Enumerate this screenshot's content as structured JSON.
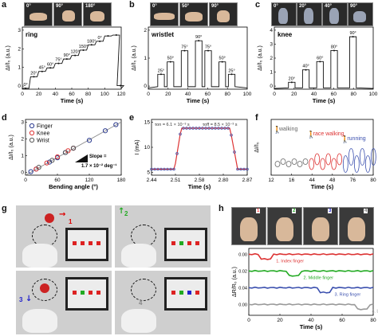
{
  "panels": {
    "a": {
      "label": "a",
      "photos": [
        "0°",
        "90°",
        "180°"
      ],
      "tag": "ring",
      "ylabel": "ΔI/I₀ (a.u.)",
      "xlabel": "Time (s)",
      "xticks": [
        "0",
        "20",
        "40",
        "60",
        "80",
        "100",
        "120"
      ],
      "yticks": [
        "0",
        "1",
        "2",
        "3"
      ],
      "steps": [
        "0°",
        "20°",
        "45°",
        "60°",
        "75°",
        "90°",
        "120°",
        "150°",
        "180°",
        "0°"
      ]
    },
    "b": {
      "label": "b",
      "photos": [
        "0°",
        "50°",
        "90°"
      ],
      "tag": "wristlet",
      "ylabel": "ΔI/I₀ (a.u.)",
      "xlabel": "Time (s)",
      "xticks": [
        "0",
        "20",
        "40",
        "60",
        "80",
        "100"
      ],
      "yticks": [
        "0",
        "1",
        "2"
      ],
      "steps": [
        "25°",
        "50°",
        "75°",
        "90°",
        "75°",
        "50°",
        "25°"
      ]
    },
    "c": {
      "label": "c",
      "photos": [
        "0°",
        "20°",
        "40°",
        "90°"
      ],
      "tag": "knee",
      "ylabel": "ΔI/I₀ (a.u.)",
      "xlabel": "Time (s)",
      "xticks": [
        "0",
        "20",
        "40",
        "60",
        "80",
        "100"
      ],
      "yticks": [
        "0",
        "1",
        "2",
        "3",
        "4"
      ],
      "steps": [
        "20°",
        "40°",
        "60°",
        "80°",
        "90°"
      ]
    },
    "d": {
      "label": "d",
      "ylabel": "ΔI/I₀ (a.u.)",
      "xlabel": "Bending angle (°)",
      "xticks": [
        "0",
        "60",
        "120",
        "180"
      ],
      "yticks": [
        "0",
        "1",
        "2",
        "3"
      ],
      "legend": [
        "Finger",
        "Knee",
        "Wrist"
      ],
      "slope_line1": "Slope =",
      "slope_line2": "1.7 × 10⁻² deg⁻¹"
    },
    "e": {
      "label": "e",
      "ylabel": "I (mA)",
      "xlabel": "Time (s)",
      "xticks": [
        "2.44",
        "2.51",
        "2.58",
        "2.80",
        "2.87"
      ],
      "yticks": [
        "5",
        "10",
        "15"
      ],
      "tau_on": "τon = 6.1 × 10⁻³ s",
      "tau_off": "τoff = 8.5 × 10⁻³ s"
    },
    "f": {
      "label": "f",
      "ylabel": "ΔI/I₀",
      "xlabel": "Time (s)",
      "xticks": [
        "12",
        "16",
        "44",
        "48",
        "76",
        "80"
      ],
      "modes": [
        "walking",
        "race walking",
        "running"
      ]
    },
    "g": {
      "label": "g",
      "n1": "1",
      "n2": "2",
      "n3": "3",
      "n4": "4"
    },
    "h": {
      "label": "h",
      "photos": [
        "1",
        "2",
        "3",
        "4"
      ],
      "ylabel": "ΔR/R₀ (a.u.)",
      "xlabel": "Time (s)",
      "xticks": [
        "0",
        "20",
        "40",
        "60",
        "80"
      ],
      "yticks": [
        "0.00",
        "0.02",
        "0.04"
      ],
      "traces": [
        "1. Index finger",
        "2. Middle finger",
        "3. Ring finger",
        "4. Little finger"
      ]
    }
  },
  "chart_data": [
    {
      "type": "line",
      "title": "",
      "tag": "ring",
      "xlabel": "Time (s)",
      "ylabel": "ΔI/I₀ (a.u.)",
      "xlim": [
        0,
        120
      ],
      "ylim": [
        0,
        3.5
      ],
      "x": [
        0,
        10,
        20,
        30,
        40,
        50,
        60,
        70,
        80,
        90,
        100,
        110,
        115
      ],
      "values": [
        0.05,
        0.7,
        1.0,
        1.2,
        1.45,
        1.7,
        1.9,
        2.2,
        2.5,
        2.7,
        3.0,
        3.05,
        0.2
      ]
    },
    {
      "type": "line",
      "tag": "wristlet",
      "xlabel": "Time (s)",
      "ylabel": "ΔI/I₀ (a.u.)",
      "xlim": [
        0,
        105
      ],
      "ylim": [
        0,
        2.5
      ],
      "x": [
        10,
        20,
        35,
        50,
        60,
        75,
        85
      ],
      "values": [
        0.6,
        1.1,
        1.55,
        1.95,
        1.55,
        1.1,
        0.6
      ]
    },
    {
      "type": "line",
      "tag": "knee",
      "xlabel": "Time (s)",
      "ylabel": "ΔI/I₀ (a.u.)",
      "xlim": [
        0,
        105
      ],
      "ylim": [
        0,
        4.5
      ],
      "x": [
        15,
        30,
        45,
        60,
        80
      ],
      "values": [
        0.5,
        1.4,
        2.0,
        2.8,
        3.8
      ]
    },
    {
      "type": "scatter",
      "xlabel": "Bending angle (°)",
      "ylabel": "ΔI/I₀ (a.u.)",
      "xlim": [
        0,
        180
      ],
      "ylim": [
        0,
        3.2
      ],
      "series": [
        {
          "name": "Finger",
          "x": [
            10,
            20,
            45,
            60,
            75,
            90,
            120,
            150,
            170
          ],
          "values": [
            0.2,
            0.35,
            0.75,
            1.0,
            1.3,
            1.55,
            2.0,
            2.55,
            2.9
          ]
        },
        {
          "name": "Knee",
          "x": [
            20,
            40,
            60,
            80,
            90
          ],
          "values": [
            0.35,
            0.7,
            1.05,
            1.4,
            1.55
          ]
        },
        {
          "name": "Wrist",
          "x": [
            25,
            50,
            75,
            90
          ],
          "values": [
            0.45,
            0.85,
            1.3,
            1.55
          ]
        }
      ]
    },
    {
      "type": "line",
      "xlabel": "Time (s)",
      "ylabel": "I (mA)",
      "ylim": [
        4,
        18
      ],
      "x": [
        2.44,
        2.495,
        2.51,
        2.58,
        2.8,
        2.855,
        2.87
      ],
      "values": [
        5.5,
        5.6,
        15.6,
        15.8,
        15.8,
        15.6,
        5.5
      ]
    }
  ]
}
